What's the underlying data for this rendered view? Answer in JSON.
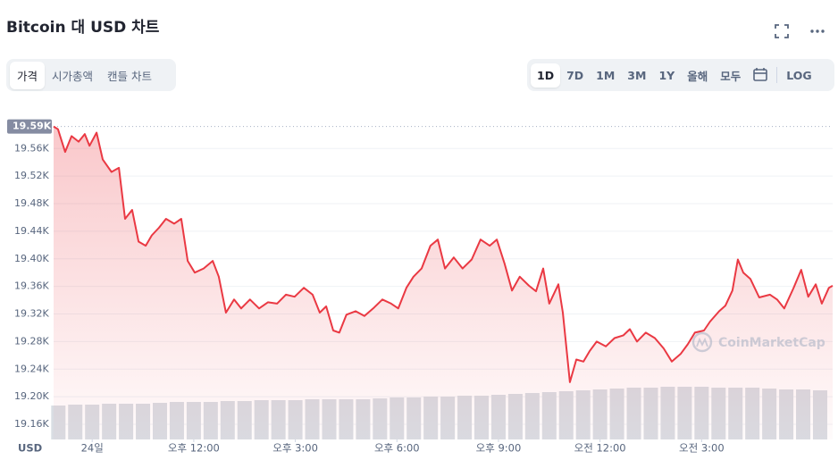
{
  "header": {
    "title": "Bitcoin 대 USD 차트"
  },
  "tabs": [
    "가격",
    "시가총액",
    "캔들 차트"
  ],
  "active_tab": 0,
  "ranges": [
    "1D",
    "7D",
    "1M",
    "3M",
    "1Y",
    "올해",
    "모두"
  ],
  "active_range": 0,
  "log_button": "LOG",
  "currency_label": "USD",
  "watermark": "CoinMarketCap",
  "chart_data": {
    "type": "line",
    "grid": true,
    "current_price": {
      "value": 19592,
      "label": "19.59K"
    },
    "x": [
      7.86,
      7.99,
      8.2,
      8.39,
      8.6,
      8.78,
      8.92,
      9.13,
      9.31,
      9.57,
      9.79,
      9.97,
      10.18,
      10.37,
      10.58,
      10.76,
      10.97,
      11.18,
      11.42,
      11.63,
      11.82,
      12.03,
      12.29,
      12.56,
      12.74,
      12.95,
      13.19,
      13.4,
      13.66,
      13.93,
      14.19,
      14.46,
      14.72,
      14.98,
      15.25,
      15.51,
      15.72,
      15.91,
      16.12,
      16.3,
      16.51,
      16.78,
      17.04,
      17.3,
      17.57,
      17.83,
      18.04,
      18.28,
      18.49,
      18.73,
      18.99,
      19.21,
      19.42,
      19.68,
      19.94,
      20.21,
      20.47,
      20.74,
      20.95,
      21.18,
      21.4,
      21.63,
      21.9,
      22.11,
      22.32,
      22.5,
      22.77,
      22.9,
      23.11,
      23.3,
      23.51,
      23.69,
      23.9,
      24.17,
      24.43,
      24.69,
      24.88,
      25.09,
      25.35,
      25.62,
      25.88,
      26.12,
      26.38,
      26.59,
      26.8,
      27.07,
      27.25,
      27.52,
      27.7,
      27.91,
      28.07,
      28.23,
      28.44,
      28.7,
      29.02,
      29.23,
      29.44,
      29.71,
      29.94,
      30.15,
      30.37,
      30.55,
      30.76,
      30.87
    ],
    "series": [
      {
        "color": "#ea3943",
        "values": [
          19592,
          19588,
          19555,
          19578,
          19570,
          19581,
          19564,
          19583,
          19544,
          19526,
          19532,
          19458,
          19471,
          19425,
          19419,
          19434,
          19445,
          19458,
          19451,
          19458,
          19397,
          19380,
          19386,
          19397,
          19374,
          19322,
          19341,
          19328,
          19341,
          19328,
          19337,
          19335,
          19348,
          19345,
          19358,
          19348,
          19322,
          19331,
          19296,
          19293,
          19319,
          19324,
          19317,
          19328,
          19341,
          19335,
          19328,
          19358,
          19374,
          19386,
          19419,
          19428,
          19386,
          19402,
          19386,
          19399,
          19428,
          19419,
          19428,
          19393,
          19354,
          19374,
          19361,
          19353,
          19386,
          19335,
          19363,
          19322,
          19221,
          19254,
          19251,
          19266,
          19280,
          19273,
          19285,
          19289,
          19298,
          19280,
          19293,
          19285,
          19270,
          19251,
          19262,
          19276,
          19293,
          19296,
          19309,
          19324,
          19332,
          19354,
          19399,
          19380,
          19371,
          19344,
          19348,
          19341,
          19328,
          19357,
          19384,
          19345,
          19363,
          19335,
          19358,
          19361
        ]
      }
    ],
    "volume": {
      "color": "#d9dde3",
      "ylim": [
        0,
        60
      ],
      "x": [
        8,
        8.5,
        9,
        9.5,
        10,
        10.5,
        11,
        11.5,
        12,
        12.5,
        13,
        13.5,
        14,
        14.5,
        15,
        15.5,
        16,
        16.5,
        17,
        17.5,
        18,
        18.5,
        19,
        19.5,
        20,
        20.5,
        21,
        21.5,
        22,
        22.5,
        23,
        23.5,
        24,
        24.5,
        25,
        25.5,
        26,
        26.5,
        27,
        27.5,
        28,
        28.5,
        29,
        29.5,
        30,
        30.5
      ],
      "values": [
        38,
        39,
        39,
        40,
        40,
        40,
        41,
        42,
        42,
        42,
        43,
        43,
        44,
        44,
        44,
        45,
        45,
        45,
        45,
        46,
        47,
        47,
        48,
        48,
        49,
        49,
        50,
        51,
        52,
        53,
        54,
        55,
        56,
        57,
        58,
        58,
        59,
        59,
        59,
        58,
        58,
        58,
        57,
        56,
        56,
        55
      ]
    },
    "xlim": [
      7.86,
      30.87
    ],
    "xticks": [
      {
        "value": 9,
        "label": "24일"
      },
      {
        "value": 12,
        "label": "오후 12:00"
      },
      {
        "value": 15,
        "label": "오후 3:00"
      },
      {
        "value": 18,
        "label": "오후 6:00"
      },
      {
        "value": 21,
        "label": "오후 9:00"
      },
      {
        "value": 24,
        "label": "오전 12:00"
      },
      {
        "value": 27,
        "label": "오전 3:00"
      }
    ],
    "ylim": [
      19138,
      19607
    ],
    "yticks": [
      {
        "value": 19160,
        "label": "19.16K"
      },
      {
        "value": 19200,
        "label": "19.20K"
      },
      {
        "value": 19240,
        "label": "19.24K"
      },
      {
        "value": 19280,
        "label": "19.28K"
      },
      {
        "value": 19320,
        "label": "19.32K"
      },
      {
        "value": 19360,
        "label": "19.36K"
      },
      {
        "value": 19400,
        "label": "19.40K"
      },
      {
        "value": 19440,
        "label": "19.44K"
      },
      {
        "value": 19480,
        "label": "19.48K"
      },
      {
        "value": 19520,
        "label": "19.52K"
      },
      {
        "value": 19560,
        "label": "19.56K"
      }
    ]
  }
}
